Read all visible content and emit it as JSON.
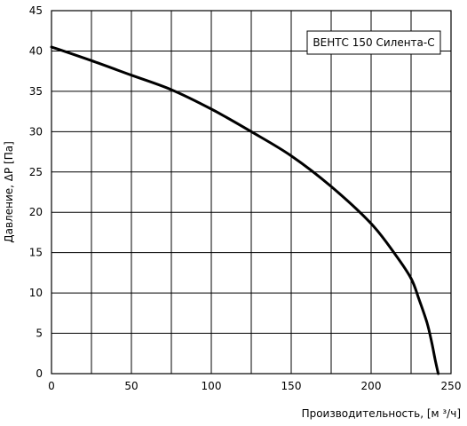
{
  "chart_data": {
    "type": "line",
    "xlabel": "Производительность, [м ³/ч]",
    "ylabel": "Давление, ΔP [Па]",
    "xlim": [
      0,
      250
    ],
    "ylim": [
      0,
      45
    ],
    "xticks": [
      0,
      50,
      100,
      150,
      200,
      250
    ],
    "yticks": [
      0,
      5,
      10,
      15,
      20,
      25,
      30,
      35,
      40,
      45
    ],
    "xgrid_step": 25,
    "ygrid_step": 5,
    "grid": true,
    "legend_position": "top-right",
    "series": [
      {
        "name": "ВЕНТС 150 Силента-С",
        "color": "#000000",
        "x": [
          0,
          25,
          50,
          75,
          100,
          125,
          150,
          175,
          200,
          215,
          225,
          230,
          235,
          238,
          240,
          242
        ],
        "y": [
          40.5,
          38.8,
          37.0,
          35.2,
          32.8,
          30.0,
          27.0,
          23.2,
          18.6,
          14.8,
          11.8,
          9.2,
          6.3,
          3.8,
          1.8,
          0
        ]
      }
    ]
  }
}
